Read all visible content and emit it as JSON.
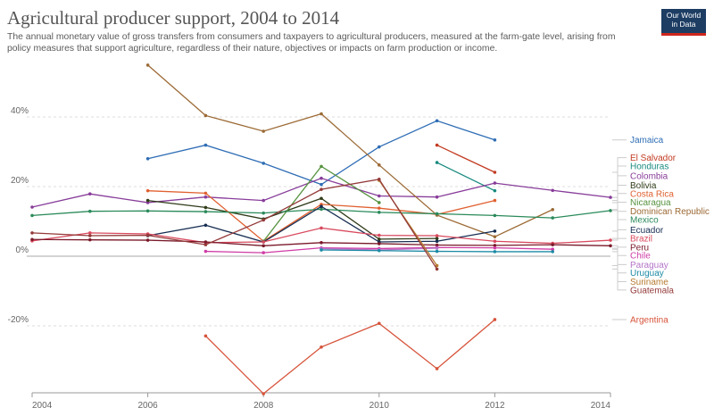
{
  "header": {
    "title": "Agricultural producer support, 2004 to 2014",
    "subtitle": "The annual monetary value of gross transfers from consumers and taxpayers to agricultural producers, measured at the farm-gate level, arising from policy measures that support agriculture, regardless of their nature, objectives or impacts on farm production or income.",
    "logo_line1": "Our World",
    "logo_line2": "in Data",
    "logo_colors": {
      "background": "#1d3d63",
      "accent": "#ce261e"
    }
  },
  "chart_data": {
    "type": "line",
    "title": "Agricultural producer support, 2004 to 2014",
    "xlabel": "",
    "ylabel": "",
    "xlim": [
      2004,
      2014
    ],
    "ylim": [
      -40,
      60
    ],
    "x_ticks": [
      2004,
      2006,
      2008,
      2010,
      2012,
      2014
    ],
    "y_ticks": [
      {
        "value": 40,
        "label": "40%"
      },
      {
        "value": 20,
        "label": "20%"
      },
      {
        "value": 0,
        "label": "0%"
      },
      {
        "value": -20,
        "label": "-20%"
      }
    ],
    "grid": "horizontal dashed",
    "legend_position": "right",
    "series": [
      {
        "name": "Jamaica",
        "color": "#2e6db5",
        "label_y": 33.4,
        "values": [
          [
            2006,
            28.0
          ],
          [
            2007,
            31.9
          ],
          [
            2008,
            26.7
          ],
          [
            2009,
            20.6
          ],
          [
            2010,
            31.4
          ],
          [
            2011,
            38.9
          ],
          [
            2012,
            33.4
          ]
        ]
      },
      {
        "name": "El Salvador",
        "color": "#c23b22",
        "label_y": 28.3,
        "values": [
          [
            2011,
            31.9
          ],
          [
            2012,
            24.1
          ]
        ]
      },
      {
        "name": "Honduras",
        "color": "#178a7e",
        "label_y": 25.9,
        "values": [
          [
            2011,
            26.9
          ],
          [
            2012,
            18.8
          ]
        ]
      },
      {
        "name": "Colombia",
        "color": "#883d9a",
        "label_y": 23.1,
        "values": [
          [
            2004,
            14.1
          ],
          [
            2005,
            17.9
          ],
          [
            2006,
            15.4
          ],
          [
            2007,
            17.0
          ],
          [
            2008,
            16.0
          ],
          [
            2009,
            22.4
          ],
          [
            2010,
            17.3
          ],
          [
            2011,
            17.0
          ],
          [
            2012,
            21.0
          ],
          [
            2013,
            18.9
          ],
          [
            2014,
            16.9
          ]
        ]
      },
      {
        "name": "Bolivia",
        "color": "#2f3b18",
        "label_y": 20.4,
        "values": [
          [
            2006,
            16.0
          ],
          [
            2007,
            14.0
          ],
          [
            2008,
            10.7
          ],
          [
            2009,
            16.6
          ],
          [
            2010,
            4.9
          ],
          [
            2011,
            5.1
          ]
        ]
      },
      {
        "name": "Costa Rica",
        "color": "#e06030",
        "label_y": 18.0,
        "values": [
          [
            2006,
            18.8
          ],
          [
            2007,
            18.1
          ],
          [
            2008,
            4.3
          ],
          [
            2009,
            14.9
          ],
          [
            2010,
            13.8
          ],
          [
            2011,
            12.0
          ],
          [
            2012,
            16.0
          ]
        ]
      },
      {
        "name": "Nicaragua",
        "color": "#56923f",
        "label_y": 15.5,
        "values": [
          [
            2008,
            4.3
          ],
          [
            2009,
            25.8
          ],
          [
            2010,
            15.4
          ]
        ]
      },
      {
        "name": "Dominican Republic",
        "color": "#9c6a35",
        "label_y": 12.9,
        "values": [
          [
            2006,
            54.9
          ],
          [
            2007,
            40.4
          ],
          [
            2008,
            35.9
          ],
          [
            2009,
            40.9
          ],
          [
            2010,
            26.2
          ],
          [
            2011,
            11.8
          ],
          [
            2012,
            5.6
          ],
          [
            2013,
            13.4
          ]
        ]
      },
      {
        "name": "Mexico",
        "color": "#2a8a5a",
        "label_y": 10.5,
        "values": [
          [
            2004,
            11.7
          ],
          [
            2005,
            12.9
          ],
          [
            2006,
            13.0
          ],
          [
            2007,
            12.8
          ],
          [
            2008,
            12.4
          ],
          [
            2009,
            13.5
          ],
          [
            2010,
            12.6
          ],
          [
            2011,
            12.2
          ],
          [
            2012,
            11.7
          ],
          [
            2013,
            11.0
          ],
          [
            2014,
            13.1
          ]
        ]
      },
      {
        "name": "Ecuador",
        "color": "#162d52",
        "label_y": 7.6,
        "values": [
          [
            2006,
            5.9
          ],
          [
            2007,
            8.9
          ],
          [
            2008,
            4.1
          ],
          [
            2009,
            14.3
          ],
          [
            2010,
            4.1
          ],
          [
            2011,
            4.3
          ],
          [
            2012,
            7.2
          ]
        ]
      },
      {
        "name": "Brazil",
        "color": "#d84a5e",
        "label_y": 5.1,
        "values": [
          [
            2004,
            4.4
          ],
          [
            2005,
            6.7
          ],
          [
            2006,
            6.4
          ],
          [
            2007,
            3.9
          ],
          [
            2008,
            4.1
          ],
          [
            2009,
            8.1
          ],
          [
            2010,
            6.0
          ],
          [
            2011,
            5.9
          ],
          [
            2012,
            4.3
          ],
          [
            2013,
            3.7
          ],
          [
            2014,
            4.6
          ]
        ]
      },
      {
        "name": "Peru",
        "color": "#7a1a2a",
        "label_y": 2.6,
        "values": [
          [
            2004,
            4.8
          ],
          [
            2005,
            4.7
          ],
          [
            2006,
            4.6
          ],
          [
            2007,
            4.1
          ],
          [
            2008,
            3.0
          ],
          [
            2009,
            3.9
          ],
          [
            2010,
            3.6
          ],
          [
            2011,
            3.2
          ],
          [
            2012,
            3.1
          ],
          [
            2013,
            3.3
          ],
          [
            2014,
            3.0
          ]
        ]
      },
      {
        "name": "Chile",
        "color": "#cf3ca5",
        "label_y": 0.2,
        "values": [
          [
            2007,
            1.4
          ],
          [
            2008,
            1.0
          ],
          [
            2009,
            2.4
          ],
          [
            2010,
            2.2
          ],
          [
            2011,
            2.5
          ],
          [
            2012,
            2.4
          ],
          [
            2013,
            2.0
          ]
        ]
      },
      {
        "name": "Paraguay",
        "color": "#b474c8",
        "label_y": -2.4,
        "values": [
          [
            2009,
            2.2
          ],
          [
            2010,
            1.8
          ],
          [
            2011,
            2.3
          ]
        ]
      },
      {
        "name": "Uruguay",
        "color": "#1b8aa5",
        "label_y": -4.8,
        "values": [
          [
            2009,
            1.8
          ],
          [
            2010,
            1.6
          ],
          [
            2011,
            1.4
          ],
          [
            2012,
            1.3
          ],
          [
            2013,
            1.3
          ]
        ]
      },
      {
        "name": "Suriname",
        "color": "#b57a2e",
        "label_y": -7.3,
        "values": [
          [
            2010,
            21.8
          ],
          [
            2011,
            -2.7
          ]
        ]
      },
      {
        "name": "Guatemala",
        "color": "#943a3a",
        "label_y": -9.7,
        "values": [
          [
            2004,
            6.7
          ],
          [
            2005,
            5.9
          ],
          [
            2006,
            6.0
          ],
          [
            2007,
            3.3
          ],
          [
            2008,
            10.4
          ],
          [
            2009,
            19.2
          ],
          [
            2010,
            22.1
          ],
          [
            2011,
            -3.7
          ]
        ]
      },
      {
        "name": "Argentina",
        "color": "#d6533a",
        "label_y": -18.2,
        "values": [
          [
            2007,
            -22.9
          ],
          [
            2008,
            -39.5
          ],
          [
            2009,
            -26.1
          ],
          [
            2010,
            -19.3
          ],
          [
            2011,
            -32.3
          ],
          [
            2012,
            -18.2
          ]
        ]
      }
    ]
  }
}
